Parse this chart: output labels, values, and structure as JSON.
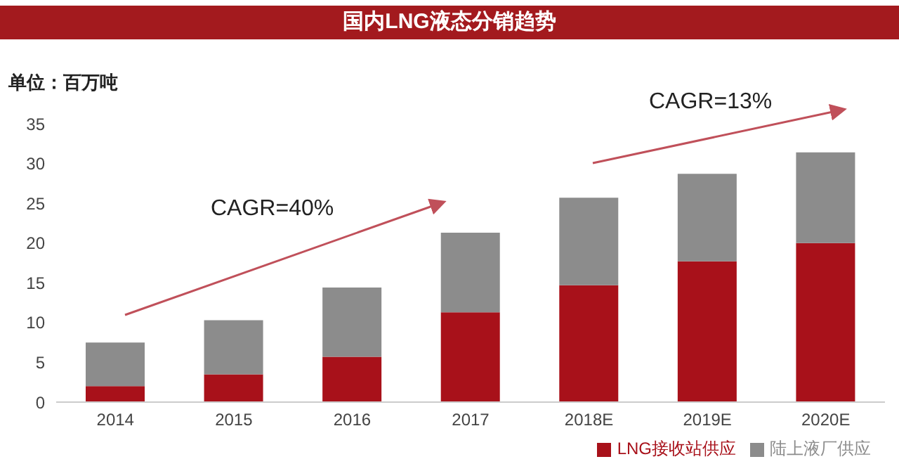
{
  "chart_data": {
    "type": "bar",
    "title": "国内LNG液态分销趋势",
    "ylabel": "单位：百万吨",
    "categories": [
      "2014",
      "2015",
      "2016",
      "2017",
      "2018E",
      "2019E",
      "2020E"
    ],
    "series": [
      {
        "name": "LNG接收站供应",
        "color": "#a8111a",
        "values": [
          2.0,
          3.5,
          5.7,
          11.3,
          14.7,
          17.7,
          20.0
        ]
      },
      {
        "name": "陆上液厂供应",
        "color": "#8c8c8c",
        "values": [
          5.5,
          6.8,
          8.7,
          10.0,
          11.0,
          11.0,
          11.4
        ]
      }
    ],
    "stacked": true,
    "ylim": [
      0,
      35
    ],
    "yticks": [
      0,
      5,
      10,
      15,
      20,
      25,
      30,
      35
    ],
    "grid": false,
    "legend": "bottom",
    "annotations": [
      "CAGR=40%",
      "CAGR=13%"
    ]
  }
}
